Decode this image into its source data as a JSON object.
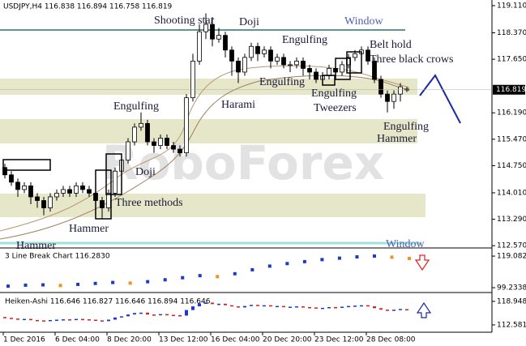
{
  "chart_data": {
    "type": "candlestick",
    "title": "USDJPY,H4  116.838 116.894 116.758 116.819",
    "watermark": "RoboForex",
    "opens": [
      114.7,
      114.5,
      114.3,
      114.1,
      114.2,
      113.9,
      113.8,
      113.6,
      113.9,
      114.0,
      114.1,
      114.0,
      114.2,
      114.1,
      114.0,
      113.8,
      113.6,
      114.0,
      114.6,
      114.9,
      115.4,
      115.8,
      115.9,
      115.4,
      115.3,
      115.5,
      115.3,
      115.2,
      115.1,
      116.6,
      117.6,
      118.4,
      118.6,
      118.2,
      118.3,
      117.9,
      117.6,
      117.3,
      117.7,
      118.0,
      117.8,
      117.9,
      117.6,
      117.7,
      117.5,
      117.5,
      117.6,
      117.4,
      117.3,
      117.1,
      117.2,
      117.4,
      117.3,
      117.5,
      117.7,
      117.8,
      117.9,
      117.6,
      117.1,
      116.7,
      116.5,
      116.7,
      116.838
    ],
    "highs": [
      114.8,
      114.6,
      114.4,
      114.3,
      114.3,
      114.0,
      113.9,
      114.0,
      114.1,
      114.2,
      114.2,
      114.3,
      114.3,
      114.2,
      114.1,
      113.9,
      114.1,
      114.7,
      115.0,
      115.5,
      115.9,
      116.2,
      116.0,
      115.5,
      115.6,
      115.6,
      115.4,
      115.3,
      116.7,
      117.8,
      118.6,
      118.9,
      118.8,
      118.5,
      118.4,
      118.0,
      117.7,
      117.8,
      118.1,
      118.1,
      118.0,
      118.0,
      117.8,
      117.8,
      117.6,
      117.7,
      117.7,
      117.5,
      117.4,
      117.3,
      117.5,
      117.5,
      117.6,
      117.8,
      117.9,
      118.0,
      118.0,
      117.7,
      117.2,
      116.8,
      116.8,
      117.0,
      116.894
    ],
    "lows": [
      114.4,
      114.2,
      113.9,
      114.0,
      113.7,
      113.6,
      113.4,
      113.5,
      113.8,
      113.9,
      113.9,
      113.9,
      114.0,
      113.9,
      113.7,
      113.3,
      113.5,
      113.9,
      114.5,
      114.8,
      115.3,
      115.7,
      115.3,
      115.1,
      115.2,
      115.2,
      115.1,
      115.0,
      115.0,
      116.5,
      117.5,
      118.2,
      118.0,
      118.1,
      117.7,
      117.2,
      117.0,
      117.2,
      117.6,
      117.6,
      117.7,
      117.4,
      117.5,
      117.4,
      117.3,
      117.4,
      117.2,
      117.1,
      117.0,
      117.0,
      117.1,
      117.2,
      117.2,
      117.4,
      117.6,
      117.7,
      117.5,
      117.0,
      116.6,
      116.2,
      116.3,
      116.5,
      116.758
    ],
    "closes": [
      114.5,
      114.3,
      114.1,
      114.2,
      113.9,
      113.8,
      113.6,
      113.9,
      114.0,
      114.1,
      114.0,
      114.2,
      114.1,
      114.0,
      113.8,
      113.6,
      114.0,
      114.6,
      114.9,
      115.4,
      115.8,
      115.9,
      115.4,
      115.3,
      115.5,
      115.3,
      115.2,
      115.1,
      116.6,
      117.6,
      118.4,
      118.6,
      118.2,
      118.3,
      117.9,
      117.6,
      117.3,
      117.7,
      118.0,
      117.8,
      117.9,
      117.6,
      117.7,
      117.5,
      117.5,
      117.6,
      117.4,
      117.3,
      117.1,
      117.2,
      117.4,
      117.3,
      117.5,
      117.7,
      117.8,
      117.9,
      117.6,
      117.1,
      116.7,
      116.5,
      116.7,
      116.9,
      116.819
    ],
    "last_price": 116.819,
    "ylim": [
      112.53,
      119.22
    ],
    "yticks": [
      {
        "value": 119.11,
        "label": "119.110"
      },
      {
        "value": 118.37,
        "label": "118.370"
      },
      {
        "value": 117.65,
        "label": "117.650"
      },
      {
        "value": 116.19,
        "label": "116.190"
      },
      {
        "value": 115.47,
        "label": "115.470"
      },
      {
        "value": 114.75,
        "label": "114.750"
      },
      {
        "value": 114.01,
        "label": "114.010"
      },
      {
        "value": 113.29,
        "label": "113.290"
      },
      {
        "value": 112.57,
        "label": "112.570"
      }
    ],
    "xtick_labels": [
      "1 Dec 2016",
      "6 Dec 04:00",
      "8 Dec 20:00",
      "13 Dec 12:00",
      "16 Dec 04:00",
      "20 Dec 20:00",
      "23 Dec 12:00",
      "28 Dec 08:00"
    ],
    "annotations": [
      "Shooting star",
      "Doji",
      "Window",
      "Engulfing",
      "Belt hold",
      "Three black crows",
      "Engulfing",
      "Harami",
      "Engulfing",
      "Tweezers",
      "Engulfing",
      "Doji",
      "Three methods",
      "Hammer",
      "Hammer",
      "Engulfing",
      "Hammer",
      "Window"
    ],
    "panels": [
      {
        "title": "3 Line Break Chart 116.2830",
        "ylim": [
          96.7,
          123.2
        ],
        "yticks": [
          {
            "value": 119.0822,
            "label": "119.0822"
          },
          {
            "value": 99.2338,
            "label": "99.2338"
          }
        ],
        "values": [
          100.2,
          100.8,
          101.0,
          100.6,
          101.3,
          101.9,
          102.5,
          102.1,
          103.0,
          104.2,
          105.5,
          106.8,
          106.2,
          108.0,
          110.5,
          112.8,
          114.4,
          115.6,
          116.9,
          117.8,
          118.6,
          119.1,
          118.4,
          117.6
        ]
      },
      {
        "title": "Heiken-Ashi 116.646 116.827 116.646 116.894 116.646",
        "ylim": [
          110.6,
          120.9
        ],
        "yticks": [
          {
            "value": 118.948,
            "label": "118.948"
          },
          {
            "value": 112.581,
            "label": "112.581"
          }
        ]
      }
    ]
  }
}
